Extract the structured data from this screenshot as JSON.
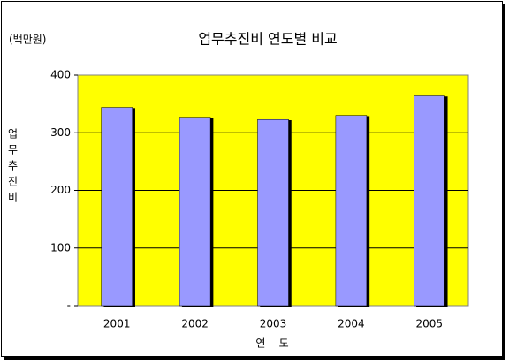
{
  "chart_data": {
    "type": "bar",
    "title": "업무추진비 연도별 비교",
    "unit_label": "(백만원)",
    "y_label": "업무추진비",
    "x_label": "연    도",
    "categories": [
      "2001",
      "2002",
      "2003",
      "2004",
      "2005"
    ],
    "values": [
      344,
      327,
      323,
      330,
      364
    ],
    "color": "#9999ff",
    "plot_background": "#ffff00",
    "ylim": [
      0,
      400
    ],
    "yticks": [
      {
        "value": 0,
        "label": "-"
      },
      100,
      200,
      300,
      400
    ],
    "grid": true
  }
}
